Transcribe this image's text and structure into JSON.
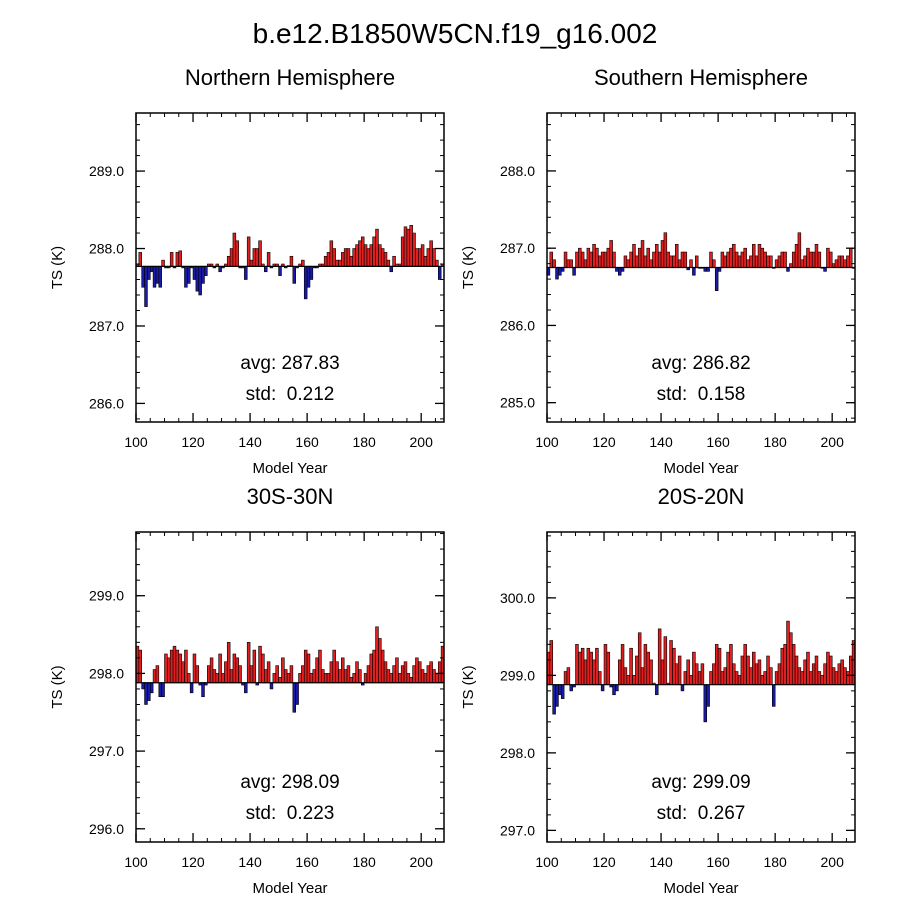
{
  "title": "b.e12.B1850W5CN.f19_g16.002",
  "colors": {
    "above": "#e02020",
    "below": "#1a1aa8",
    "outline": "#000000"
  },
  "chart_data": [
    {
      "type": "bar",
      "title": "Northern Hemisphere",
      "xlabel": "Model Year",
      "ylabel": "TS (K)",
      "xlim": [
        100,
        208
      ],
      "ylim": [
        285.76,
        289.75
      ],
      "xticks": [
        100,
        120,
        140,
        160,
        180,
        200
      ],
      "yticks": [
        286.0,
        287.0,
        288.0,
        289.0
      ],
      "ytick_labels": [
        "286.0",
        "287.0",
        "288.0",
        "289.0"
      ],
      "baseline": 287.77,
      "x_start": 100,
      "stats": {
        "avg_label": "avg: 287.83",
        "std_label": "std:  0.212"
      },
      "values": [
        287.8,
        287.95,
        287.5,
        287.25,
        287.6,
        287.7,
        287.5,
        287.55,
        287.5,
        287.85,
        287.75,
        287.75,
        287.95,
        287.75,
        287.95,
        287.97,
        287.75,
        287.5,
        287.55,
        287.75,
        287.6,
        287.45,
        287.4,
        287.55,
        287.65,
        287.8,
        287.8,
        287.75,
        287.8,
        287.7,
        287.75,
        287.8,
        287.9,
        288.0,
        288.2,
        288.1,
        287.75,
        287.75,
        287.6,
        288.15,
        287.85,
        288.0,
        288.0,
        288.1,
        287.8,
        287.7,
        287.95,
        287.75,
        287.8,
        287.8,
        287.65,
        287.8,
        287.75,
        287.78,
        287.9,
        287.55,
        287.75,
        287.8,
        287.85,
        287.35,
        287.5,
        287.6,
        287.75,
        287.75,
        287.8,
        287.8,
        287.9,
        287.95,
        288.1,
        288.0,
        287.85,
        287.85,
        287.95,
        288.0,
        288.0,
        287.9,
        288.0,
        288.05,
        288.1,
        288.15,
        288.05,
        288.0,
        288.05,
        288.15,
        288.25,
        288.05,
        288.0,
        287.95,
        287.85,
        287.7,
        287.9,
        287.8,
        287.8,
        288.15,
        288.28,
        288.25,
        288.3,
        288.2,
        288.0,
        288.0,
        288.05,
        287.9,
        288.0,
        288.1,
        288.0,
        287.85,
        287.6,
        287.8,
        287.82
      ]
    },
    {
      "type": "bar",
      "title": "Southern Hemisphere",
      "xlabel": "Model Year",
      "ylabel": "TS (K)",
      "xlim": [
        100,
        208
      ],
      "ylim": [
        284.75,
        288.75
      ],
      "xticks": [
        100,
        120,
        140,
        160,
        180,
        200
      ],
      "yticks": [
        285.0,
        286.0,
        287.0,
        288.0
      ],
      "ytick_labels": [
        "285.0",
        "286.0",
        "287.0",
        "288.0"
      ],
      "baseline": 286.75,
      "x_start": 100,
      "stats": {
        "avg_label": "avg: 286.82",
        "std_label": "std:  0.158"
      },
      "values": [
        286.65,
        286.95,
        286.85,
        286.6,
        286.65,
        286.7,
        286.95,
        286.85,
        286.85,
        286.65,
        286.95,
        287.0,
        286.95,
        286.85,
        287.0,
        286.95,
        287.05,
        287.0,
        286.9,
        286.95,
        286.95,
        287.0,
        287.1,
        286.95,
        286.7,
        286.65,
        286.7,
        286.9,
        286.85,
        286.95,
        287.05,
        286.9,
        287.0,
        287.1,
        286.9,
        287.0,
        286.85,
        286.95,
        287.05,
        286.95,
        287.1,
        287.2,
        286.95,
        286.9,
        286.9,
        287.05,
        286.85,
        286.95,
        286.95,
        286.72,
        286.85,
        286.65,
        286.9,
        286.75,
        286.75,
        286.7,
        286.7,
        286.95,
        286.85,
        286.45,
        286.7,
        286.95,
        286.9,
        286.95,
        287.0,
        287.05,
        286.95,
        286.9,
        286.95,
        287.0,
        286.85,
        286.9,
        287.05,
        286.9,
        287.05,
        287.0,
        286.95,
        286.9,
        286.9,
        286.75,
        286.85,
        286.9,
        286.95,
        286.95,
        286.7,
        286.8,
        286.95,
        287.05,
        287.2,
        286.85,
        286.9,
        287.0,
        286.95,
        286.95,
        287.05,
        286.95,
        286.75,
        286.7,
        287.0,
        286.95,
        286.8,
        286.85,
        286.9,
        286.9,
        286.85,
        286.9,
        287.0,
        286.75,
        286.85
      ]
    },
    {
      "type": "bar",
      "title": "30S-30N",
      "xlabel": "Model Year",
      "ylabel": "TS (K)",
      "xlim": [
        100,
        208
      ],
      "ylim": [
        295.83,
        299.82
      ],
      "xticks": [
        100,
        120,
        140,
        160,
        180,
        200
      ],
      "yticks": [
        296.0,
        297.0,
        298.0,
        299.0
      ],
      "ytick_labels": [
        "296.0",
        "297.0",
        "298.0",
        "299.0"
      ],
      "baseline": 297.88,
      "x_start": 100,
      "stats": {
        "avg_label": "avg: 298.09",
        "std_label": "std:  0.223"
      },
      "values": [
        298.35,
        298.3,
        297.8,
        297.6,
        297.65,
        297.75,
        298.05,
        298.1,
        297.7,
        297.7,
        298.25,
        298.2,
        298.3,
        298.35,
        298.3,
        298.25,
        298.15,
        298.3,
        298.0,
        297.75,
        298.25,
        298.1,
        297.85,
        297.7,
        297.85,
        298.1,
        298.2,
        298.05,
        298.0,
        298.25,
        298.0,
        298.15,
        298.4,
        298.05,
        298.25,
        298.2,
        298.1,
        297.85,
        297.75,
        298.4,
        298.1,
        298.3,
        297.85,
        298.35,
        298.25,
        298.05,
        298.15,
        297.8,
        298.0,
        298.1,
        297.95,
        298.2,
        298.05,
        298.0,
        298.1,
        297.5,
        297.6,
        298.0,
        298.1,
        298.3,
        298.25,
        298.0,
        298.05,
        298.2,
        298.3,
        298.05,
        298.0,
        298.0,
        298.15,
        298.3,
        298.15,
        298.05,
        298.2,
        298.05,
        298.1,
        297.95,
        298.0,
        298.15,
        298.05,
        297.85,
        298.0,
        298.1,
        298.25,
        298.3,
        298.6,
        298.45,
        298.3,
        298.15,
        298.05,
        298.0,
        298.1,
        298.2,
        298.0,
        298.1,
        298.15,
        298.0,
        297.95,
        298.1,
        298.2,
        298.15,
        298.05,
        298.0,
        298.1,
        298.15,
        298.05,
        298.0,
        298.15,
        298.35,
        298.4
      ]
    },
    {
      "type": "bar",
      "title": "20S-20N",
      "xlabel": "Model Year",
      "ylabel": "TS (K)",
      "xlim": [
        100,
        208
      ],
      "ylim": [
        296.85,
        300.85
      ],
      "xticks": [
        100,
        120,
        140,
        160,
        180,
        200
      ],
      "yticks": [
        297.0,
        298.0,
        299.0,
        300.0
      ],
      "ytick_labels": [
        "297.0",
        "298.0",
        "299.0",
        "300.0"
      ],
      "baseline": 298.88,
      "x_start": 100,
      "stats": {
        "avg_label": "avg: 299.09",
        "std_label": "std:  0.267"
      },
      "values": [
        299.3,
        299.45,
        298.5,
        298.6,
        298.75,
        298.7,
        299.05,
        299.1,
        298.8,
        298.85,
        299.4,
        299.3,
        299.35,
        299.2,
        299.35,
        299.3,
        299.2,
        299.35,
        299.05,
        298.8,
        299.4,
        299.3,
        298.85,
        298.75,
        298.8,
        299.2,
        299.4,
        299.1,
        299.0,
        299.35,
        299.0,
        299.25,
        299.55,
        299.1,
        299.4,
        299.3,
        299.2,
        298.9,
        298.75,
        299.6,
        299.2,
        299.5,
        298.9,
        299.45,
        299.35,
        299.15,
        299.25,
        298.8,
        299.05,
        299.2,
        299.0,
        299.3,
        299.15,
        299.05,
        299.15,
        298.4,
        298.6,
        299.05,
        299.15,
        299.4,
        299.35,
        299.05,
        299.1,
        299.3,
        299.4,
        299.15,
        299.05,
        299.0,
        299.25,
        299.4,
        299.25,
        299.1,
        299.3,
        299.15,
        299.2,
        299.0,
        299.05,
        299.25,
        299.1,
        298.6,
        299.05,
        299.15,
        299.35,
        299.4,
        299.7,
        299.55,
        299.4,
        299.25,
        299.1,
        299.05,
        299.2,
        299.3,
        299.05,
        299.15,
        299.25,
        299.05,
        299.0,
        299.15,
        299.3,
        299.25,
        299.1,
        299.05,
        299.15,
        299.2,
        299.1,
        299.05,
        299.25,
        299.45,
        299.5
      ]
    }
  ]
}
